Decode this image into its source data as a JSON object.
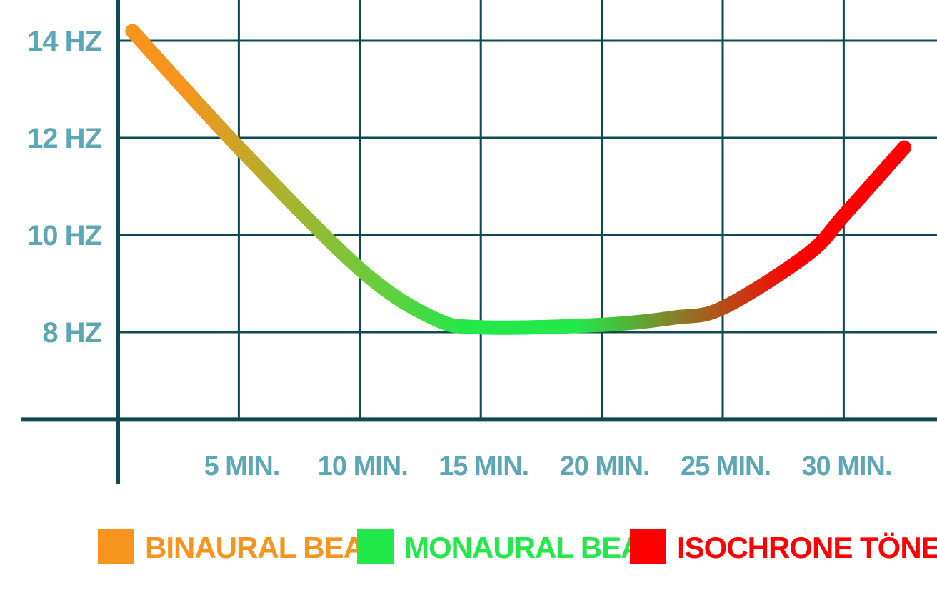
{
  "chart_data": {
    "type": "line",
    "title": "",
    "xlabel": "",
    "ylabel": "",
    "x_ticks": [
      {
        "value": 5,
        "label": "5 MIN."
      },
      {
        "value": 10,
        "label": "10 MIN."
      },
      {
        "value": 15,
        "label": "15 MIN."
      },
      {
        "value": 20,
        "label": "20 MIN."
      },
      {
        "value": 25,
        "label": "25 MIN."
      },
      {
        "value": 30,
        "label": "30 MIN."
      }
    ],
    "y_ticks": [
      {
        "value": 8,
        "label": "8 HZ"
      },
      {
        "value": 10,
        "label": "10 HZ"
      },
      {
        "value": 12,
        "label": "12 HZ"
      },
      {
        "value": 14,
        "label": "14 HZ"
      }
    ],
    "xlim": [
      0,
      33
    ],
    "ylim": [
      6.2,
      14.9
    ],
    "grid": true,
    "series": [
      {
        "name": "BINAURAL BEAT",
        "color": "#f7941d",
        "values": [
          [
            0.6,
            14.2
          ],
          [
            5,
            11.8
          ],
          [
            10,
            9.3
          ],
          [
            13,
            8.3
          ],
          [
            15,
            8.1
          ]
        ]
      },
      {
        "name": "MONAURAL BEAT",
        "color": "#22e84a",
        "values": [
          [
            15,
            8.1
          ],
          [
            20,
            8.15
          ],
          [
            23,
            8.3
          ],
          [
            25,
            8.5
          ]
        ]
      },
      {
        "name": "ISOCHRONE TÖNE",
        "color": "#ff0000",
        "values": [
          [
            25,
            8.5
          ],
          [
            28.5,
            9.6
          ],
          [
            30,
            10.4
          ],
          [
            32.5,
            11.8
          ]
        ]
      }
    ],
    "legend_position": "bottom",
    "colors": {
      "axis": "#0f4a52",
      "tick_labels": "#5da6b6"
    }
  }
}
